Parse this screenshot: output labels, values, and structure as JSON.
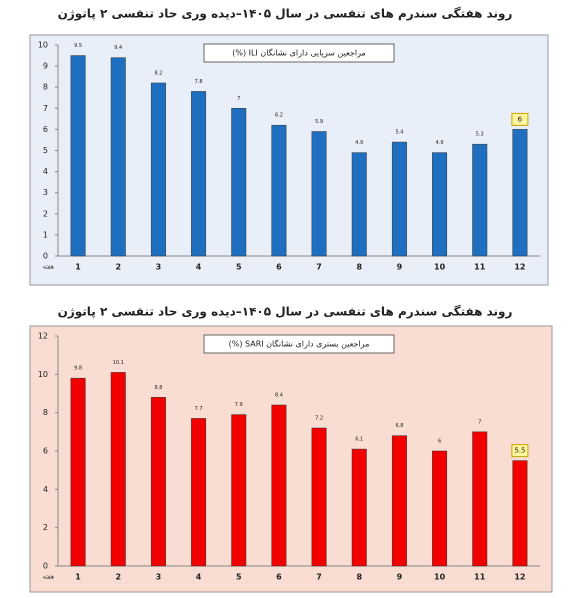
{
  "chart_data": [
    {
      "type": "bar",
      "title": "روند هفتگی سندرم های تنفسی در سال ۱۴۰۵–دیده وری حاد تنفسی ۲ پاتوژن",
      "legend": "مراجعین سرپایی دارای نشانگان ILI (%)",
      "x_label": "هفته",
      "categories": [
        "1",
        "2",
        "3",
        "4",
        "5",
        "6",
        "7",
        "8",
        "9",
        "10",
        "11",
        "12"
      ],
      "values": [
        9.5,
        9.4,
        8.2,
        7.8,
        7,
        6.2,
        5.9,
        4.9,
        5.4,
        4.9,
        5.3,
        6
      ],
      "color": "#1f6fc0",
      "background": "#e8eff8",
      "ylim": [
        0,
        10
      ],
      "yticks": [
        0,
        1,
        2,
        3,
        4,
        5,
        6,
        7,
        8,
        9,
        10
      ],
      "grid": false
    },
    {
      "type": "bar",
      "title": "روند هفتگی سندرم های تنفسی در سال ۱۴۰۵–دیده وری حاد تنفسی ۲ پاتوژن",
      "legend": "مراجعین بستری دارای نشانگان SARI (%)",
      "x_label": "هفته",
      "categories": [
        "1",
        "2",
        "3",
        "4",
        "5",
        "6",
        "7",
        "8",
        "9",
        "10",
        "11",
        "12"
      ],
      "values": [
        9.8,
        10.1,
        8.8,
        7.7,
        7.9,
        8.4,
        7.2,
        6.1,
        6.8,
        6,
        7,
        5.5
      ],
      "color": "#f20000",
      "background": "#f9dcd2",
      "ylim": [
        0,
        12
      ],
      "yticks": [
        0,
        2,
        4,
        6,
        8,
        10,
        12
      ],
      "grid": false
    }
  ]
}
